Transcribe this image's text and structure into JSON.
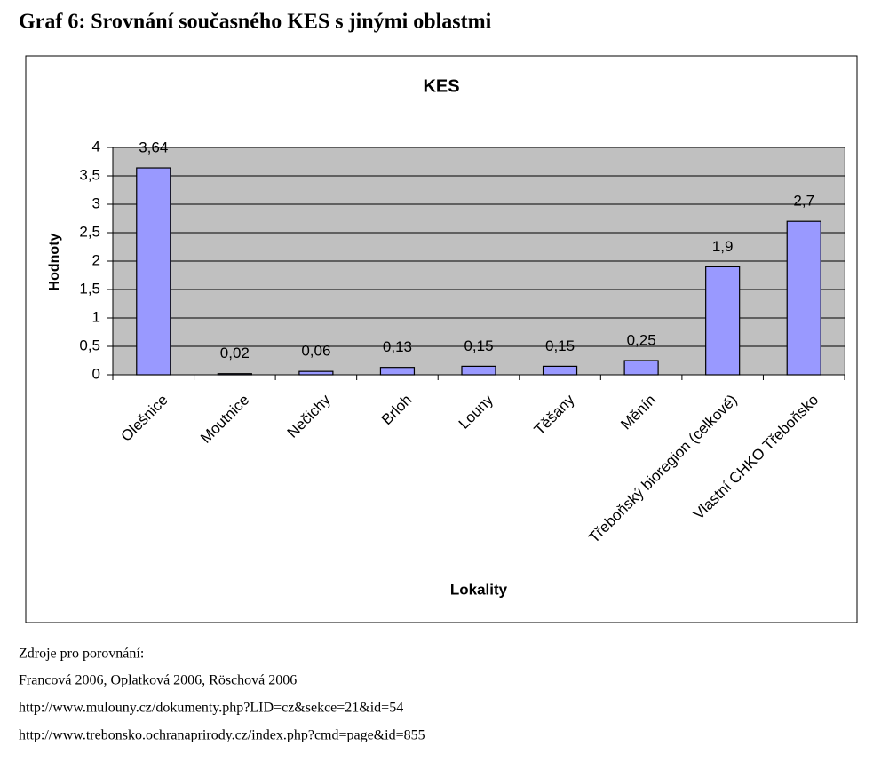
{
  "title": "Graf 6:  Srovnání současného KES s jinými oblastmi",
  "chart_data": {
    "type": "bar",
    "title": "KES",
    "y_label": "Hodnoty",
    "x_label": "Lokality",
    "categories": [
      "Olešnice",
      "Moutnice",
      "Nečichy",
      "Brloh",
      "Louny",
      "Těšany",
      "Měnín",
      "Třeboňský bioregion (celkově)",
      "Vlastní CHKO Třeboňsko"
    ],
    "values": [
      3.64,
      0.02,
      0.06,
      0.13,
      0.15,
      0.15,
      0.25,
      1.9,
      2.7
    ],
    "value_labels": [
      "3,64",
      "0,02",
      "0,06",
      "0,13",
      "0,15",
      "0,15",
      "0,25",
      "1,9",
      "2,7"
    ],
    "color": "#9999ff",
    "ylim": [
      0,
      4
    ],
    "yticks": [
      0,
      {
        "value": 0.5,
        "label": "0,5"
      },
      1,
      {
        "value": 1.5,
        "label": "1,5"
      },
      2,
      {
        "value": 2.5,
        "label": "2,5"
      },
      3,
      {
        "value": 3.5,
        "label": "3,5"
      },
      4
    ],
    "grid": true
  },
  "sources": [
    "Zdroje pro porovnání:",
    "Francová 2006, Oplatková 2006, Röschová 2006",
    "http://www.mulouny.cz/dokumenty.php?LID=cz&sekce=21&id=54",
    "http://www.trebonsko.ochranaprirody.cz/index.php?cmd=page&id=855"
  ]
}
